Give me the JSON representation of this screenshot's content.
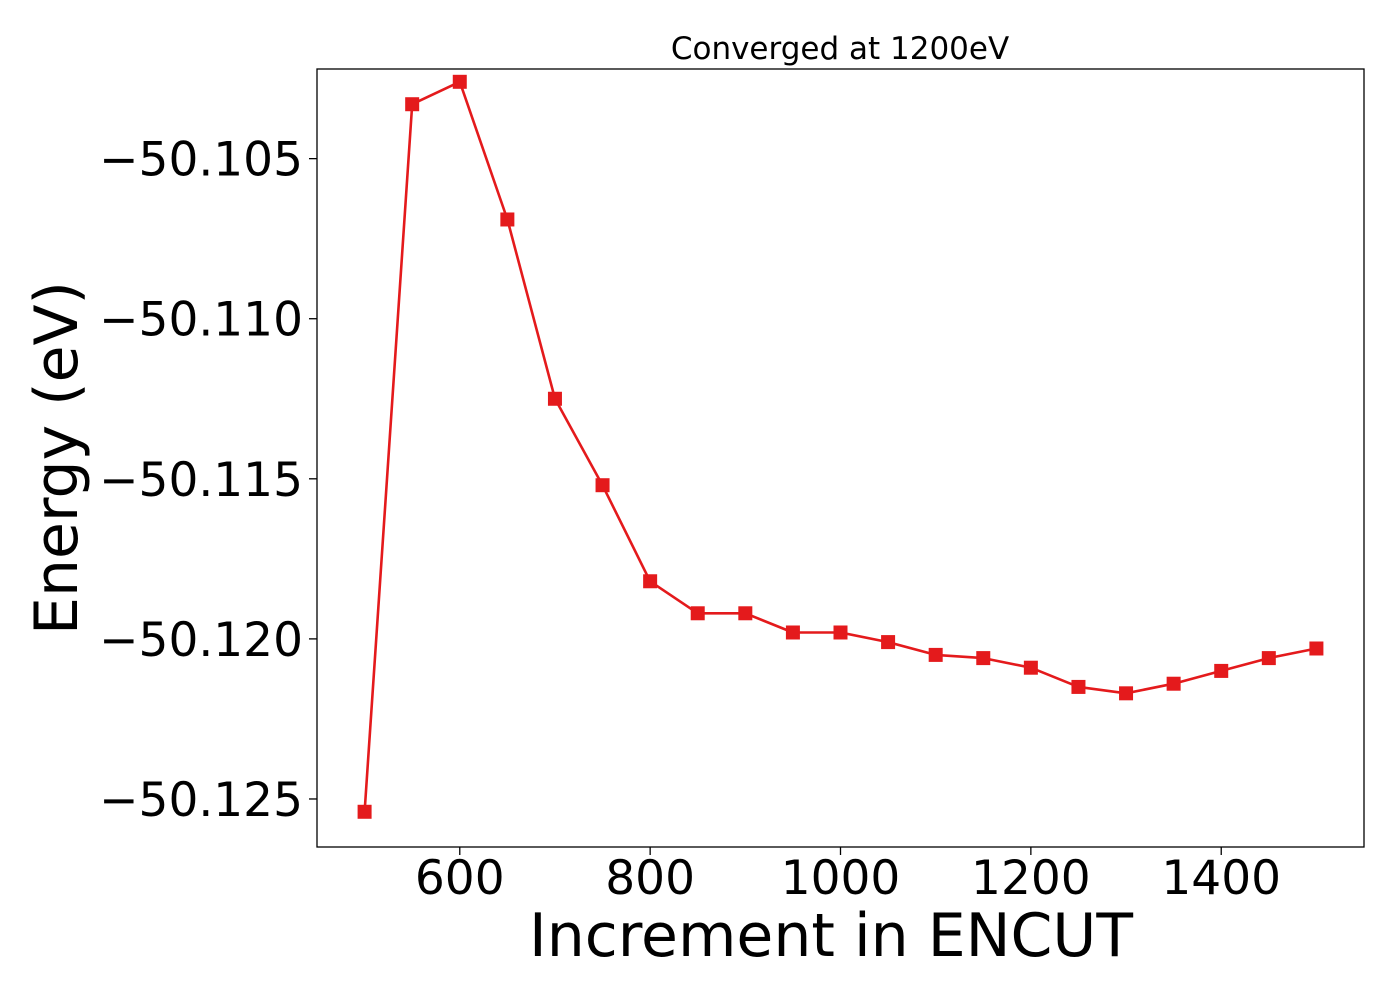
{
  "chart_data": {
    "type": "line",
    "title": "Converged at 1200eV",
    "xlabel": "Increment in ENCUT",
    "ylabel": "Energy (eV)",
    "xlim": [
      450,
      1550
    ],
    "ylim": [
      -50.1265,
      -50.1022
    ],
    "x_ticks": [
      600,
      800,
      1000,
      1200,
      1400
    ],
    "x_tick_labels": [
      "600",
      "800",
      "1000",
      "1200",
      "1400"
    ],
    "y_ticks": [
      -50.105,
      -50.11,
      -50.115,
      -50.12,
      -50.125
    ],
    "y_tick_labels": [
      "−50.105",
      "−50.110",
      "−50.115",
      "−50.120",
      "−50.125"
    ],
    "grid": false,
    "legend": "none",
    "marker": "square",
    "series": [
      {
        "color": "#e41a1c",
        "x": [
          500,
          550,
          600,
          650,
          700,
          750,
          800,
          850,
          900,
          950,
          1000,
          1050,
          1100,
          1150,
          1200,
          1250,
          1300,
          1350,
          1400,
          1450,
          1500
        ],
        "y": [
          -50.1254,
          -50.1033,
          -50.1026,
          -50.1069,
          -50.1125,
          -50.1152,
          -50.1182,
          -50.1192,
          -50.1192,
          -50.1198,
          -50.1198,
          -50.1201,
          -50.1205,
          -50.1206,
          -50.1209,
          -50.1215,
          -50.1217,
          -50.1214,
          -50.121,
          -50.1206,
          -50.1203
        ]
      }
    ]
  }
}
